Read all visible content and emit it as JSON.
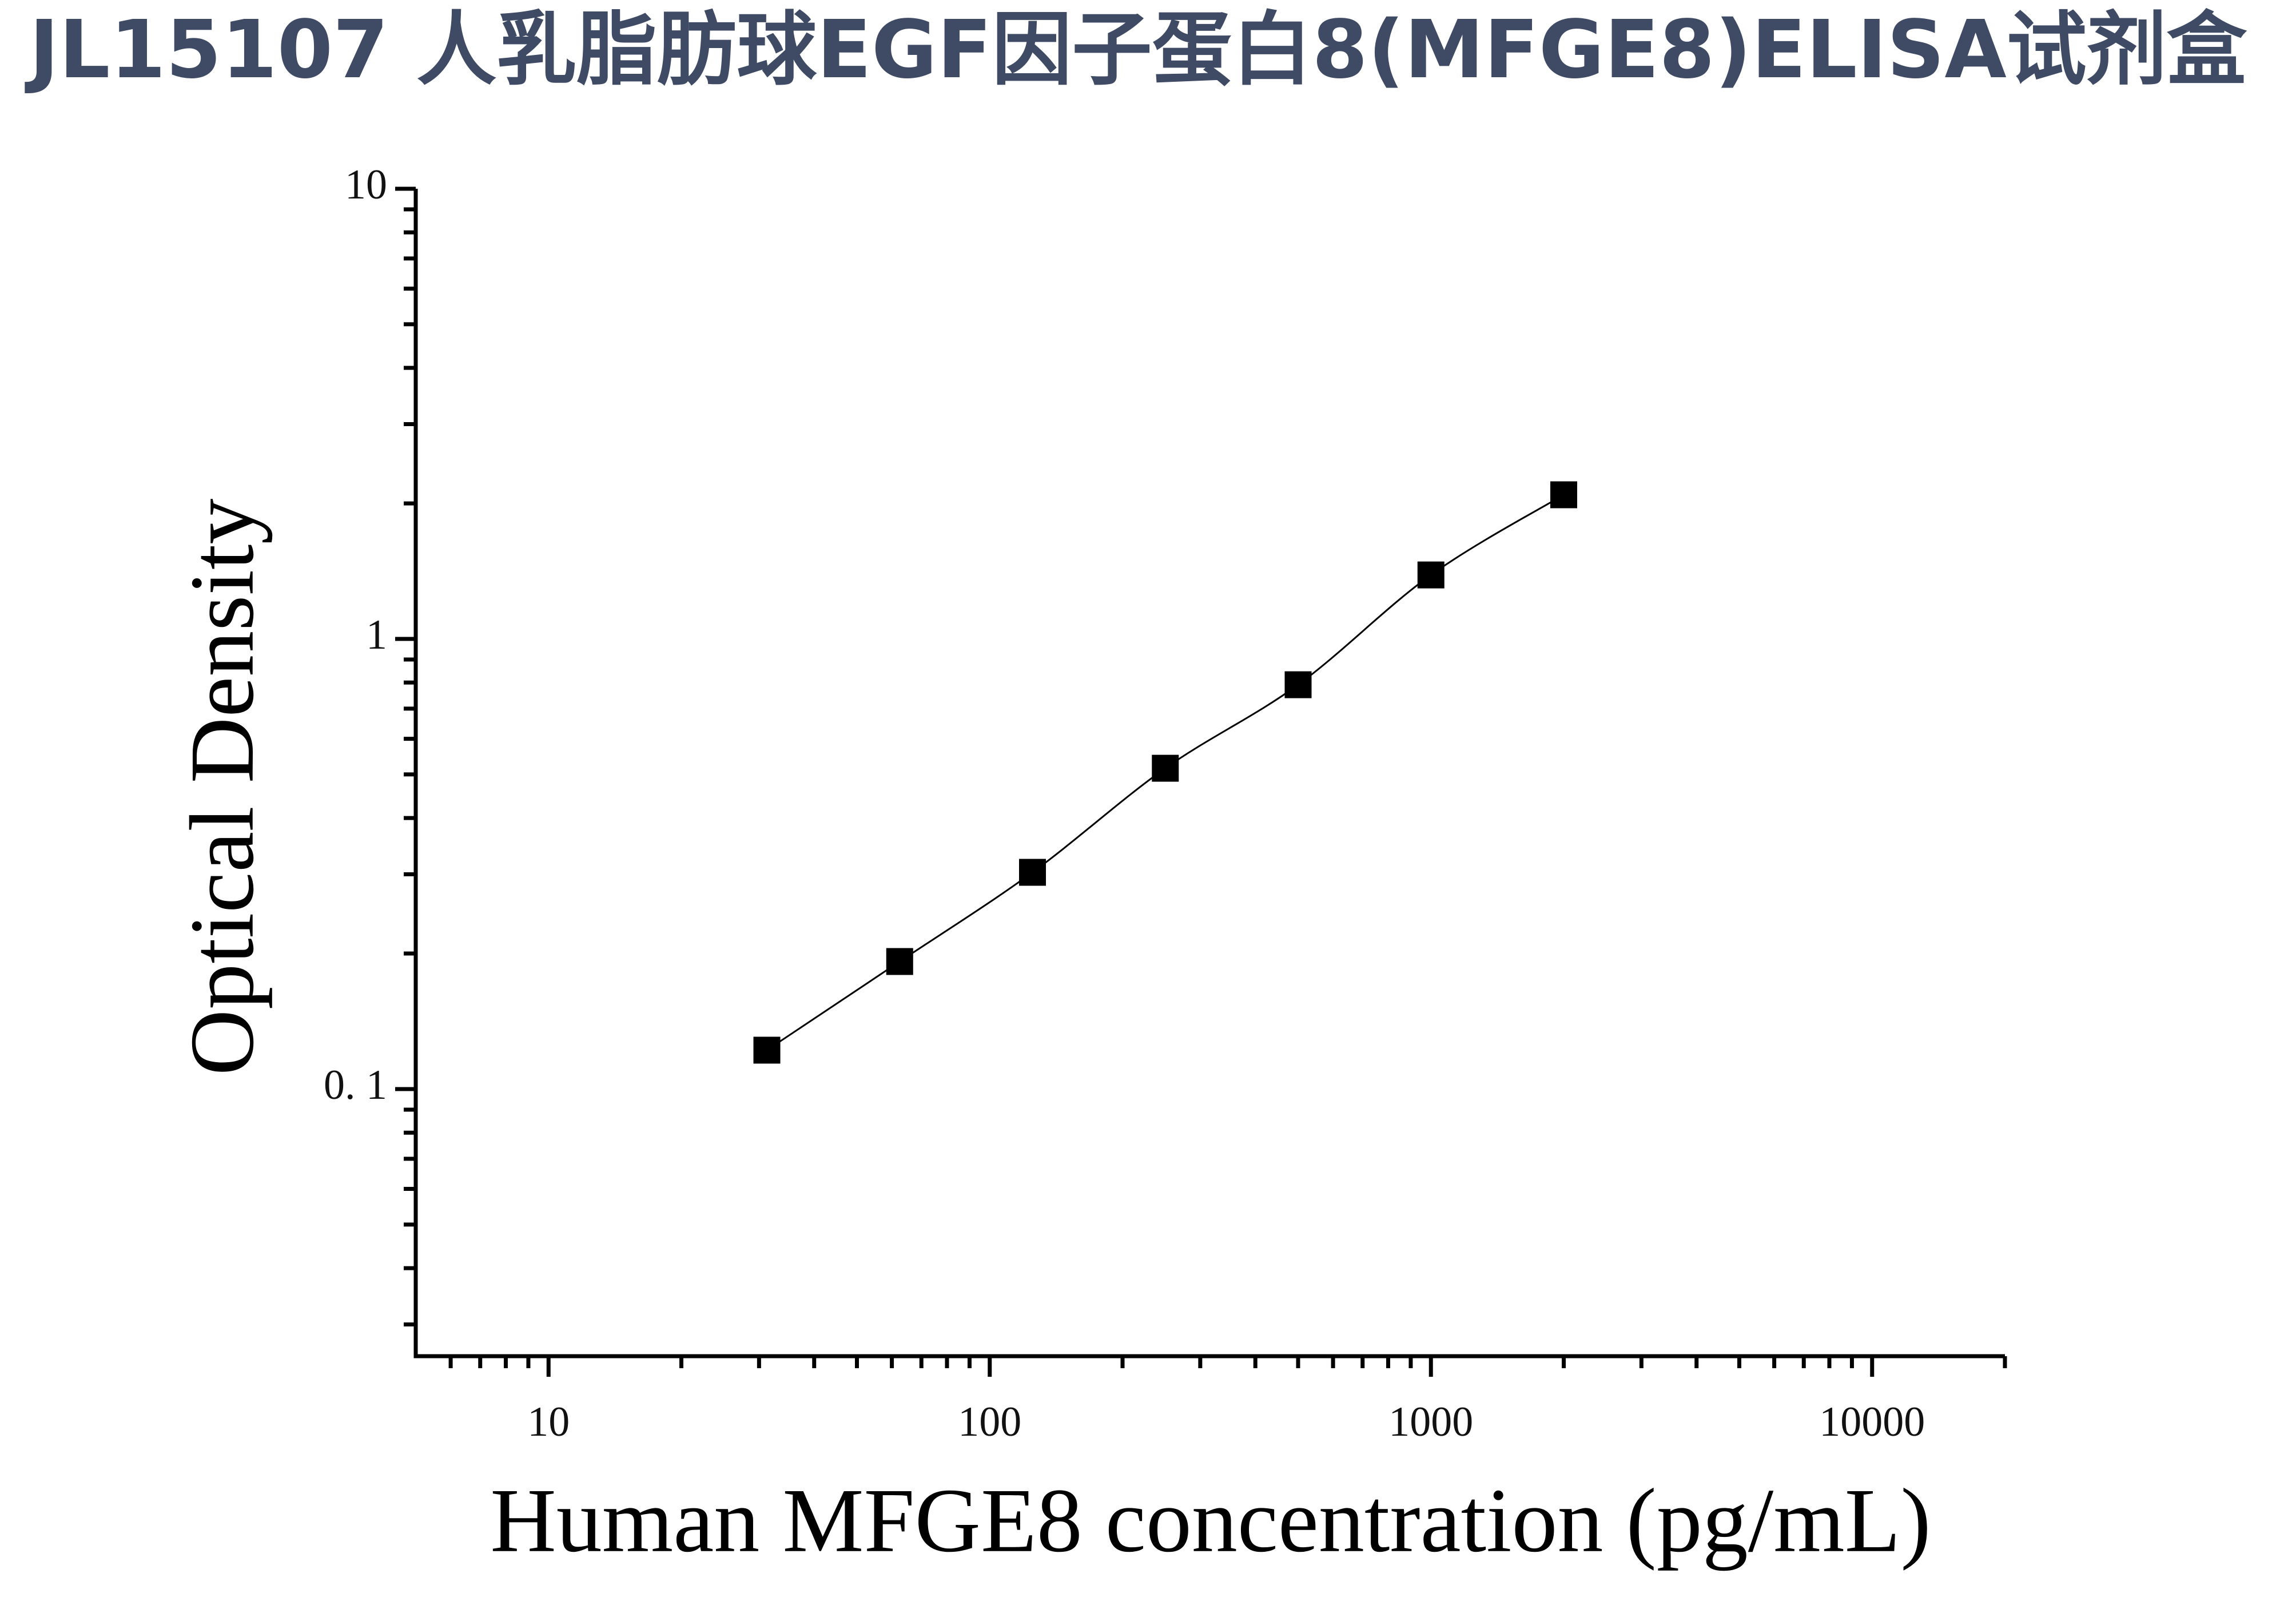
{
  "chart_data": {
    "type": "scatter",
    "title": "JL15107 人乳脂肪球EGF因子蛋白8(MFGE8)ELISA试剂盒",
    "x_label": "Human MFGE8 concentration (pg/mL)",
    "y_label": "Optical Density",
    "x_log": true,
    "y_log": true,
    "xlim": [
      5,
      20000
    ],
    "ylim": [
      0.0255,
      10
    ],
    "xticks": [
      10,
      100,
      1000,
      10000
    ],
    "yticks": [
      {
        "value": 0.1,
        "label": "0. 1"
      },
      1,
      10
    ],
    "xminorticks": [
      6,
      7,
      8,
      9,
      20,
      30,
      40,
      50,
      60,
      70,
      80,
      90,
      200,
      300,
      400,
      500,
      600,
      700,
      800,
      900,
      2000,
      3000,
      4000,
      5000,
      6000,
      7000,
      8000,
      9000,
      20000
    ],
    "yminorticks": [
      0.03,
      0.04,
      0.05,
      0.06,
      0.07,
      0.08,
      0.09,
      0.2,
      0.3,
      0.4,
      0.5,
      0.6,
      0.7,
      0.8,
      0.9,
      2,
      3,
      4,
      5,
      6,
      7,
      8,
      9
    ],
    "curve": true,
    "color": "#000000",
    "x": [
      31.25,
      62.5,
      125,
      250,
      500,
      1000,
      2000
    ],
    "values": [
      0.122,
      0.192,
      0.303,
      0.516,
      0.791,
      1.387,
      2.09
    ]
  }
}
